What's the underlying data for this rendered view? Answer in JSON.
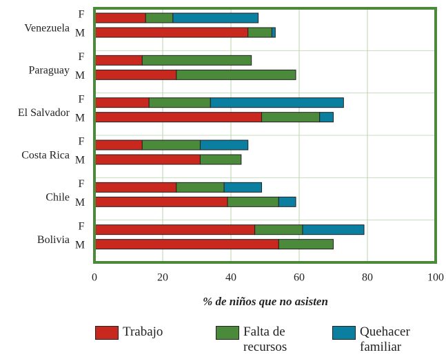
{
  "chart_data": {
    "type": "stacked-barh",
    "xlabel": "% de niños que no asisten",
    "groups": [
      {
        "name": "Venezuela",
        "rows": [
          "F",
          "M"
        ]
      },
      {
        "name": "Paraguay",
        "rows": [
          "F",
          "M"
        ]
      },
      {
        "name": "El Salvador",
        "rows": [
          "F",
          "M"
        ]
      },
      {
        "name": "Costa Rica",
        "rows": [
          "F",
          "M"
        ]
      },
      {
        "name": "Chile",
        "rows": [
          "F",
          "M"
        ]
      },
      {
        "name": "Bolivia",
        "rows": [
          "F",
          "M"
        ]
      }
    ],
    "series": [
      {
        "name": "Trabajo",
        "color": "#c8281e",
        "values": [
          15,
          45,
          14,
          24,
          16,
          49,
          14,
          31,
          24,
          39,
          47,
          54
        ]
      },
      {
        "name": "Falta de recursos",
        "color": "#4a8a3a",
        "values": [
          8,
          7,
          32,
          35,
          18,
          17,
          17,
          12,
          14,
          15,
          14,
          16
        ]
      },
      {
        "name": "Quehacer familiar",
        "color": "#0a7fa0",
        "values": [
          25,
          1,
          null,
          null,
          39,
          4,
          14,
          null,
          11,
          5,
          18,
          null
        ]
      }
    ],
    "xlim": [
      0,
      100
    ],
    "xticks": [
      0,
      20,
      40,
      60,
      80,
      100
    ],
    "grid": true
  }
}
